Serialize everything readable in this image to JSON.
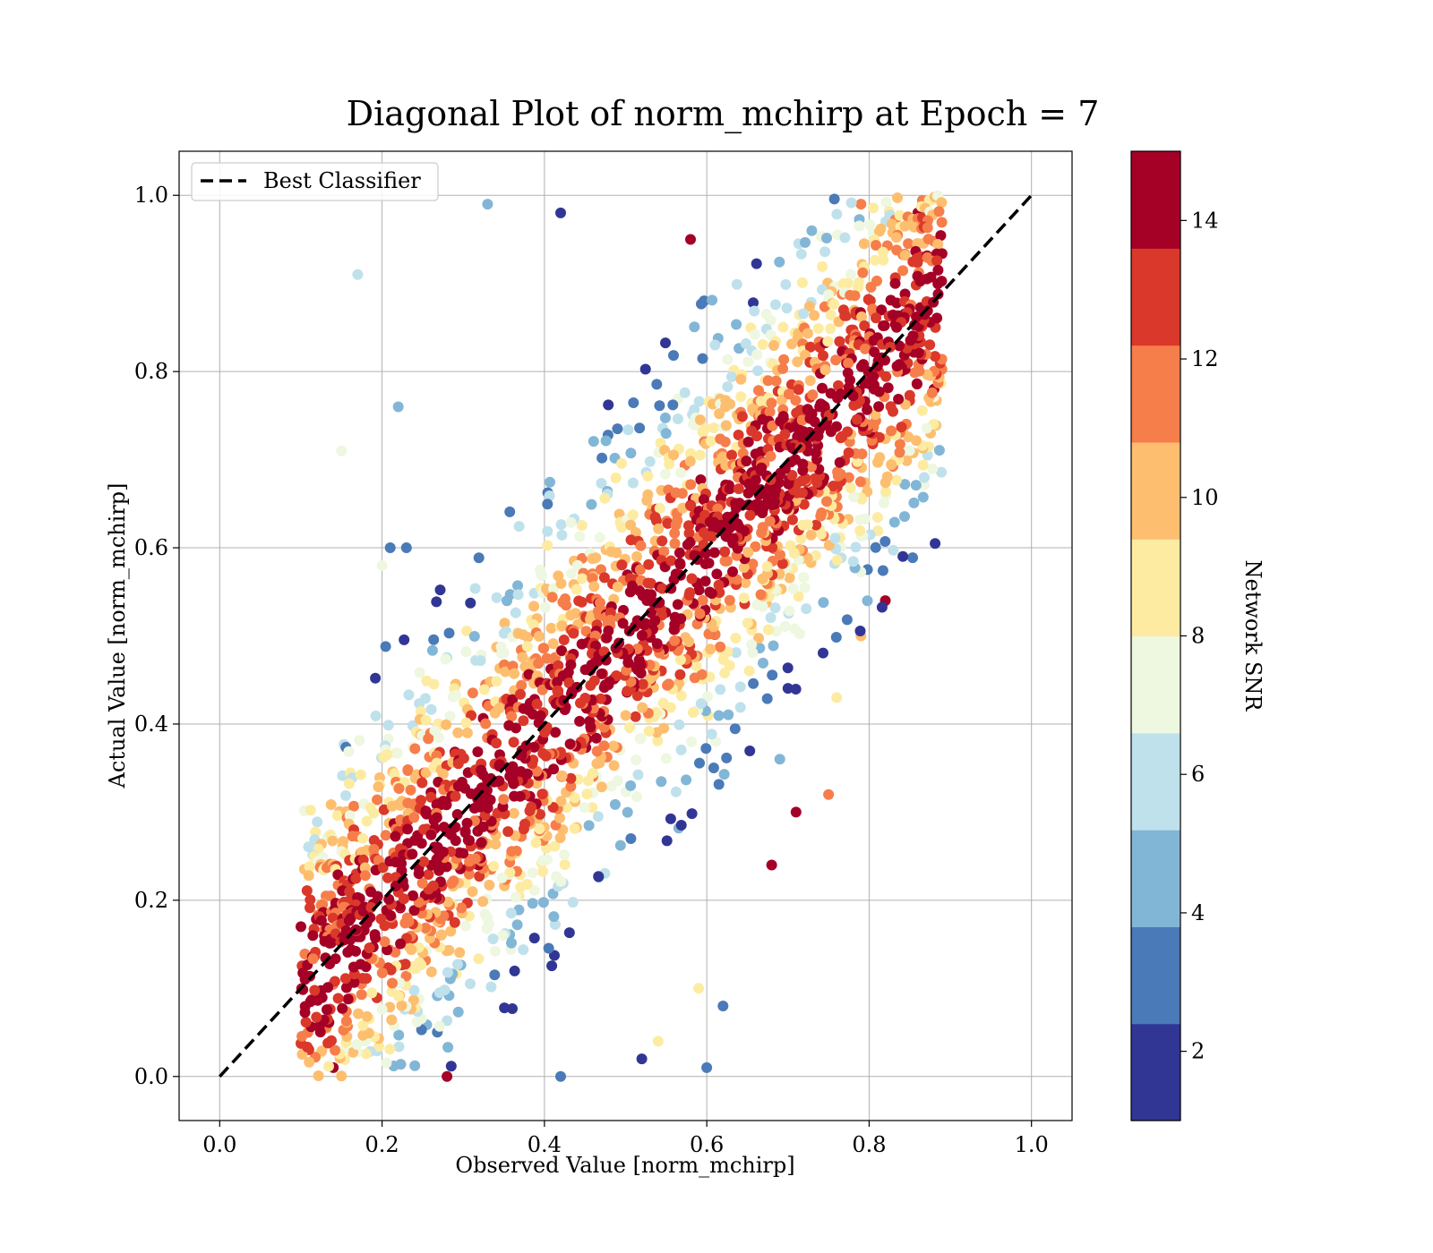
{
  "chart_data": {
    "type": "scatter",
    "title": "Diagonal Plot of norm_mchirp at Epoch = 7",
    "xlabel": "Observed Value [norm_mchirp]",
    "ylabel": "Actual Value [norm_mchirp]",
    "xlim": [
      -0.05,
      1.05
    ],
    "ylim": [
      -0.05,
      1.05
    ],
    "xticks": [
      "0.0",
      "0.2",
      "0.4",
      "0.6",
      "0.8",
      "1.0"
    ],
    "yticks": [
      "0.0",
      "0.2",
      "0.4",
      "0.6",
      "0.8",
      "1.0"
    ],
    "grid": true,
    "legend": {
      "position": "upper-left",
      "entries": [
        {
          "label": "Best Classifier",
          "style": "dashed",
          "color": "#000000"
        }
      ]
    },
    "reference_line": {
      "name": "Best Classifier",
      "x": [
        0,
        1
      ],
      "y": [
        0,
        1
      ],
      "style": "dashed",
      "color": "#000000"
    },
    "colorbar": {
      "label": "Network SNR",
      "range": [
        1,
        15
      ],
      "ticks": [
        "2",
        "4",
        "6",
        "8",
        "10",
        "12",
        "14"
      ],
      "bins": [
        {
          "from": 1,
          "to": 2.4,
          "color": "#313695"
        },
        {
          "from": 2.4,
          "to": 3.8,
          "color": "#4a7ab7"
        },
        {
          "from": 3.8,
          "to": 5.2,
          "color": "#82b6d6"
        },
        {
          "from": 5.2,
          "to": 6.6,
          "color": "#bfe1ec"
        },
        {
          "from": 6.6,
          "to": 8.0,
          "color": "#eef7df"
        },
        {
          "from": 8.0,
          "to": 9.4,
          "color": "#fdeba1"
        },
        {
          "from": 9.4,
          "to": 10.8,
          "color": "#fdbe6f"
        },
        {
          "from": 10.8,
          "to": 12.2,
          "color": "#f67e4b"
        },
        {
          "from": 12.2,
          "to": 13.6,
          "color": "#da382a"
        },
        {
          "from": 13.6,
          "to": 15,
          "color": "#a50026"
        }
      ]
    },
    "point_distribution": {
      "observed_range": [
        0.1,
        0.89
      ],
      "actual_range": [
        0.0,
        1.0
      ],
      "band_center": "y = x",
      "band_halfwidth_observed": 0.27,
      "high_snr_near_diagonal": true,
      "low_snr_far_from_diagonal": true,
      "sample_points": [
        {
          "x": 0.17,
          "y": 0.91,
          "snr": 6
        },
        {
          "x": 0.33,
          "y": 0.99,
          "snr": 4
        },
        {
          "x": 0.42,
          "y": 0.98,
          "snr": 2
        },
        {
          "x": 0.58,
          "y": 0.95,
          "snr": 14
        },
        {
          "x": 0.79,
          "y": 0.99,
          "snr": 11
        },
        {
          "x": 0.88,
          "y": 0.78,
          "snr": 14
        },
        {
          "x": 0.86,
          "y": 0.98,
          "snr": 14
        },
        {
          "x": 0.15,
          "y": 0.71,
          "snr": 7
        },
        {
          "x": 0.22,
          "y": 0.76,
          "snr": 5
        },
        {
          "x": 0.1,
          "y": 0.17,
          "snr": 14
        },
        {
          "x": 0.14,
          "y": 0.01,
          "snr": 14
        },
        {
          "x": 0.28,
          "y": 0.0,
          "snr": 14
        },
        {
          "x": 0.42,
          "y": 0.0,
          "snr": 3
        },
        {
          "x": 0.52,
          "y": 0.02,
          "snr": 2
        },
        {
          "x": 0.6,
          "y": 0.01,
          "snr": 3
        },
        {
          "x": 0.62,
          "y": 0.08,
          "snr": 3
        },
        {
          "x": 0.68,
          "y": 0.24,
          "snr": 14
        },
        {
          "x": 0.75,
          "y": 0.32,
          "snr": 11
        },
        {
          "x": 0.76,
          "y": 0.43,
          "snr": 9
        },
        {
          "x": 0.71,
          "y": 0.3,
          "snr": 14
        },
        {
          "x": 0.69,
          "y": 0.36,
          "snr": 5
        },
        {
          "x": 0.82,
          "y": 0.54,
          "snr": 14
        },
        {
          "x": 0.79,
          "y": 0.5,
          "snr": 10
        },
        {
          "x": 0.2,
          "y": 0.58,
          "snr": 7
        },
        {
          "x": 0.21,
          "y": 0.6,
          "snr": 3
        },
        {
          "x": 0.23,
          "y": 0.6,
          "snr": 3
        },
        {
          "x": 0.54,
          "y": 0.04,
          "snr": 9
        },
        {
          "x": 0.59,
          "y": 0.1,
          "snr": 8
        }
      ]
    }
  }
}
